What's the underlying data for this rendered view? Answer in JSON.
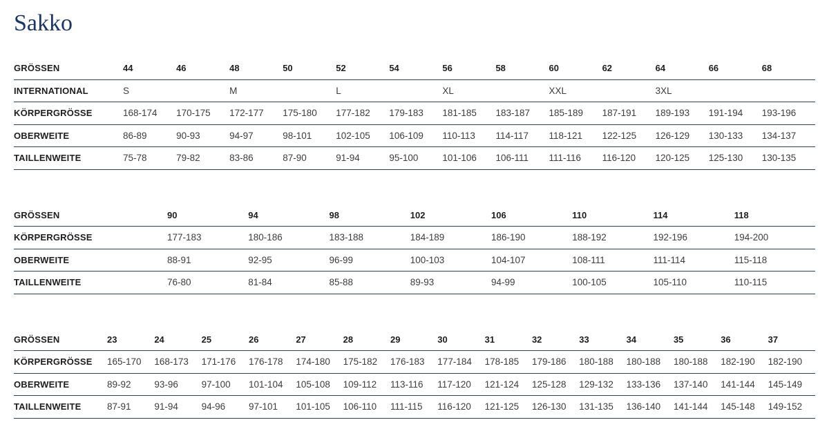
{
  "page": {
    "title": "Sakko"
  },
  "tables": [
    {
      "name": "sizes-regular",
      "rows": [
        {
          "label": "GRÖSSEN",
          "cells": [
            "44",
            "46",
            "48",
            "50",
            "52",
            "54",
            "56",
            "58",
            "60",
            "62",
            "64",
            "66",
            "68"
          ]
        },
        {
          "label": "INTERNATIONAL",
          "cells": [
            "S",
            "",
            "M",
            "",
            "L",
            "",
            "XL",
            "",
            "XXL",
            "",
            "3XL",
            "",
            ""
          ]
        },
        {
          "label": "KÖRPERGRÖSSE",
          "cells": [
            "168-174",
            "170-175",
            "172-177",
            "175-180",
            "177-182",
            "179-183",
            "181-185",
            "183-187",
            "185-189",
            "187-191",
            "189-193",
            "191-194",
            "193-196"
          ]
        },
        {
          "label": "OBERWEITE",
          "cells": [
            "86-89",
            "90-93",
            "94-97",
            "98-101",
            "102-105",
            "106-109",
            "110-113",
            "114-117",
            "118-121",
            "122-125",
            "126-129",
            "130-133",
            "134-137"
          ]
        },
        {
          "label": "TAILLENWEITE",
          "cells": [
            "75-78",
            "79-82",
            "83-86",
            "87-90",
            "91-94",
            "95-100",
            "101-106",
            "106-111",
            "111-116",
            "116-120",
            "120-125",
            "125-130",
            "130-135"
          ]
        }
      ]
    },
    {
      "name": "sizes-long",
      "rows": [
        {
          "label": "GRÖSSEN",
          "cells": [
            "90",
            "94",
            "98",
            "102",
            "106",
            "110",
            "114",
            "118"
          ]
        },
        {
          "label": "KÖRPERGRÖSSE",
          "cells": [
            "177-183",
            "180-186",
            "183-188",
            "184-189",
            "186-190",
            "188-192",
            "192-196",
            "194-200"
          ]
        },
        {
          "label": "OBERWEITE",
          "cells": [
            "88-91",
            "92-95",
            "96-99",
            "100-103",
            "104-107",
            "108-111",
            "111-114",
            "115-118"
          ]
        },
        {
          "label": "TAILLENWEITE",
          "cells": [
            "76-80",
            "81-84",
            "85-88",
            "89-93",
            "94-99",
            "100-105",
            "105-110",
            "110-115"
          ]
        }
      ]
    },
    {
      "name": "sizes-short",
      "rows": [
        {
          "label": "GRÖSSEN",
          "cells": [
            "23",
            "24",
            "25",
            "26",
            "27",
            "28",
            "29",
            "30",
            "31",
            "32",
            "33",
            "34",
            "35",
            "36",
            "37"
          ]
        },
        {
          "label": "KÖRPERGRÖSSE",
          "cells": [
            "165-170",
            "168-173",
            "171-176",
            "176-178",
            "174-180",
            "175-182",
            "176-183",
            "177-184",
            "178-185",
            "179-186",
            "180-188",
            "180-188",
            "180-188",
            "182-190",
            "182-190"
          ]
        },
        {
          "label": "OBERWEITE",
          "cells": [
            "89-92",
            "93-96",
            "97-100",
            "101-104",
            "105-108",
            "109-112",
            "113-116",
            "117-120",
            "121-124",
            "125-128",
            "129-132",
            "133-136",
            "137-140",
            "141-144",
            "145-149"
          ]
        },
        {
          "label": "TAILLENWEITE",
          "cells": [
            "87-91",
            "91-94",
            "94-96",
            "97-101",
            "101-105",
            "106-110",
            "111-115",
            "116-120",
            "121-125",
            "126-130",
            "131-135",
            "136-140",
            "141-144",
            "145-148",
            "149-152"
          ]
        }
      ]
    }
  ]
}
